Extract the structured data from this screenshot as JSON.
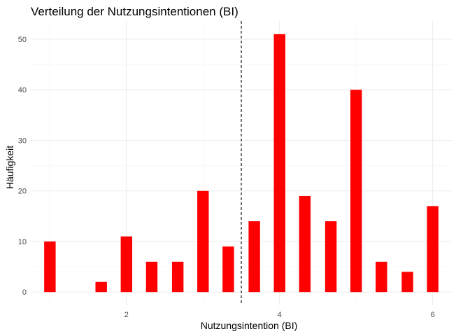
{
  "chart_data": {
    "type": "bar",
    "title": "Verteilung der Nutzungsintentionen (BI)",
    "xlabel": "Nutzungsintention (BI)",
    "ylabel": "Häufigkeit",
    "xlim": [
      0.75,
      6.25
    ],
    "ylim": [
      -2.6,
      53.6
    ],
    "xticks": [
      2,
      4,
      6
    ],
    "yticks": [
      0,
      10,
      20,
      30,
      40,
      50
    ],
    "bar_width": 0.15,
    "bar_color": "#ff0000",
    "grid": true,
    "reference_line": {
      "x": 3.5,
      "style": "dashed"
    },
    "bars": [
      {
        "x": 1.0,
        "value": 10
      },
      {
        "x": 1.67,
        "value": 2
      },
      {
        "x": 2.0,
        "value": 11
      },
      {
        "x": 2.33,
        "value": 6
      },
      {
        "x": 2.67,
        "value": 6
      },
      {
        "x": 3.0,
        "value": 20
      },
      {
        "x": 3.33,
        "value": 9
      },
      {
        "x": 3.67,
        "value": 14
      },
      {
        "x": 4.0,
        "value": 51
      },
      {
        "x": 4.33,
        "value": 19
      },
      {
        "x": 4.67,
        "value": 14
      },
      {
        "x": 5.0,
        "value": 40
      },
      {
        "x": 5.33,
        "value": 6
      },
      {
        "x": 5.67,
        "value": 4
      },
      {
        "x": 6.0,
        "value": 17
      }
    ]
  }
}
